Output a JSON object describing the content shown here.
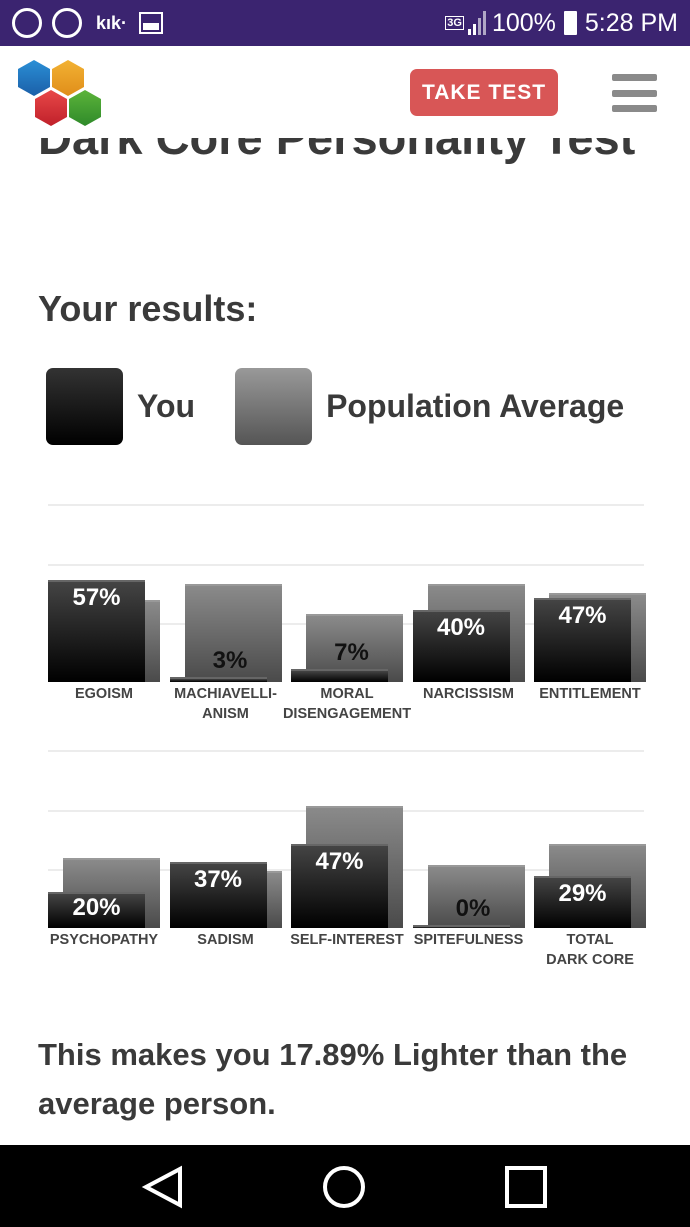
{
  "status_bar": {
    "app_icons": [
      "sync-icon",
      "sync-icon",
      "kik-icon",
      "image-icon"
    ],
    "kik_label": "kık·",
    "network": "3G",
    "battery": "100%",
    "time": "5:28 PM",
    "background": "#3b2470"
  },
  "header": {
    "take_test_label": "TAKE TEST",
    "button_color": "#d85656"
  },
  "page": {
    "title": "Dark Core Personality Test",
    "results_heading": "Your results:",
    "legend": {
      "you": "You",
      "population": "Population Average"
    },
    "summary": "This makes you 17.89% Lighter than the average person."
  },
  "chart_data": [
    {
      "type": "bar",
      "categories": [
        "EGOISM",
        "MACHIAVELLI-\nANISM",
        "MORAL\nDISENGAGEMENT",
        "NARCISSISM",
        "ENTITLEMENT"
      ],
      "series": [
        {
          "name": "You",
          "values": [
            57,
            3,
            7,
            40,
            47
          ]
        },
        {
          "name": "Population Average",
          "values": [
            46,
            55,
            38,
            55,
            50
          ]
        }
      ],
      "ylim": [
        0,
        100
      ],
      "grid": true
    },
    {
      "type": "bar",
      "categories": [
        "PSYCHOPATHY",
        "SADISM",
        "SELF-INTEREST",
        "SPITEFULNESS",
        "TOTAL\nDARK CORE"
      ],
      "series": [
        {
          "name": "You",
          "values": [
            20,
            37,
            47,
            0,
            29
          ]
        },
        {
          "name": "Population Average",
          "values": [
            39,
            32,
            68,
            35,
            47
          ]
        }
      ],
      "ylim": [
        0,
        100
      ],
      "grid": true
    }
  ],
  "nav_bar": {
    "icons": [
      "back-icon",
      "home-icon",
      "recents-icon"
    ]
  }
}
